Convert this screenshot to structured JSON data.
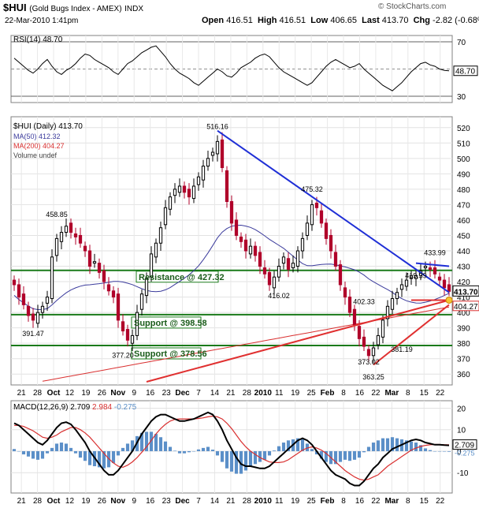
{
  "header": {
    "symbol": "$HUI",
    "name": "(Gold Bugs Index - AMEX)",
    "exchange": "INDX",
    "watermark": "© StockCharts.com",
    "date": "22-Mar-2010 1:41pm",
    "open_label": "Open",
    "open": "416.51",
    "high_label": "High",
    "high": "416.51",
    "low_label": "Low",
    "low": "406.65",
    "last_label": "Last",
    "last": "413.70",
    "chg_label": "Chg",
    "chg": "-2.82 (-0.68%)",
    "chg_arrow": "▼"
  },
  "colors": {
    "up": "#000000",
    "down": "#b0002a",
    "ma50": "#3b3b9c",
    "ma200": "#d93030",
    "trend_blue": "#1f2fd6",
    "trend_red": "#e03030",
    "support_green": "#1a7a1a",
    "volume": "#5b8fc8",
    "macd_signal": "#d93030"
  },
  "chart_data": [
    {
      "type": "line",
      "name": "RSI",
      "legend": "RSI(14) 48.70",
      "last_label": "48.70",
      "ylim": [
        30,
        70
      ],
      "y_ticks": [
        "70",
        "50",
        "30"
      ],
      "reference_lines": [
        70,
        30
      ],
      "values": [
        58,
        55,
        52,
        49,
        47,
        50,
        54,
        57,
        52,
        48,
        46,
        49,
        51,
        54,
        58,
        61,
        60,
        57,
        55,
        53,
        51,
        48,
        46,
        50,
        54,
        56,
        59,
        62,
        64,
        66,
        67,
        63,
        59,
        54,
        50,
        47,
        45,
        43,
        40,
        38,
        41,
        44,
        47,
        50,
        48,
        45,
        44,
        47,
        51,
        53,
        55,
        58,
        60,
        61,
        59,
        55,
        51,
        48,
        46,
        44,
        42,
        40,
        38,
        40,
        44,
        48,
        52,
        55,
        57,
        55,
        53,
        51,
        52,
        54,
        50,
        47,
        44,
        41,
        38,
        36,
        34,
        37,
        40,
        44,
        48,
        51,
        54,
        55,
        53,
        52,
        50,
        49,
        48.7
      ]
    },
    {
      "type": "candlestick",
      "name": "$HUI (Daily)",
      "legend_title": "$HUI (Daily) 413.70",
      "legend_ma50": "MA(50) 412.32",
      "legend_ma200": "MA(200) 404.27",
      "legend_volume": "Volume undef",
      "ylim": [
        355,
        525
      ],
      "y_ticks": [
        "520",
        "510",
        "500",
        "490",
        "480",
        "470",
        "460",
        "450",
        "440",
        "430",
        "420",
        "410",
        "400",
        "390",
        "380",
        "370",
        "360"
      ],
      "last_price_label": "413.70",
      "ma200_label": "404.27",
      "x_ticks": [
        "21",
        "28",
        "Oct",
        "12",
        "19",
        "26",
        "Nov",
        "9",
        "16",
        "23",
        "Dec",
        "7",
        "14",
        "21",
        "28",
        "2010",
        "11",
        "19",
        "25",
        "Feb",
        "8",
        "16",
        "22",
        "Mar",
        "8",
        "15",
        "22"
      ],
      "closes": [
        418,
        410,
        405,
        398,
        395,
        400,
        404,
        410,
        436,
        448,
        452,
        456,
        452,
        449,
        445,
        440,
        430,
        433,
        426,
        420,
        414,
        410,
        395,
        388,
        382,
        385,
        400,
        412,
        422,
        438,
        445,
        455,
        468,
        475,
        480,
        482,
        478,
        475,
        482,
        488,
        495,
        500,
        504,
        511,
        494,
        472,
        458,
        450,
        446,
        440,
        443,
        437,
        430,
        425,
        418,
        423,
        430,
        436,
        428,
        432,
        440,
        448,
        458,
        470,
        468,
        458,
        448,
        440,
        430,
        418,
        410,
        400,
        392,
        383,
        378,
        372,
        377,
        385,
        395,
        404,
        409,
        413,
        418,
        421,
        424,
        424,
        427,
        430,
        428,
        425,
        421,
        416,
        413.7
      ],
      "price_labels": [
        {
          "text": "458.85",
          "index": 9,
          "value": 458.85
        },
        {
          "text": "391.47",
          "index": 4,
          "value": 391.47
        },
        {
          "text": "377.20",
          "index": 23,
          "value": 377.2
        },
        {
          "text": "516.16",
          "index": 43,
          "value": 516.16
        },
        {
          "text": "416.02",
          "index": 56,
          "value": 416.02
        },
        {
          "text": "475.32",
          "index": 63,
          "value": 475.32
        },
        {
          "text": "402.33",
          "index": 74,
          "value": 402.33
        },
        {
          "text": "373.02",
          "index": 75,
          "value": 373.02
        },
        {
          "text": "363.25",
          "index": 76,
          "value": 363.25
        },
        {
          "text": "381.19",
          "index": 82,
          "value": 381.19
        },
        {
          "text": "419.39",
          "index": 85,
          "value": 419.39
        },
        {
          "text": "433.99",
          "index": 89,
          "value": 433.99
        }
      ],
      "horizontal_levels": [
        {
          "label": "Resistance @ 427.32",
          "value": 427.32
        },
        {
          "label": "Support @ 398.58",
          "value": 398.58
        },
        {
          "label": "Support @ 378.56",
          "value": 378.56
        }
      ],
      "trendlines": [
        {
          "color": "blue",
          "from": {
            "index": 43,
            "value": 518
          },
          "to": {
            "index": 92,
            "value": 413
          }
        },
        {
          "color": "blue",
          "from": {
            "index": 85,
            "value": 432
          },
          "to": {
            "index": 92,
            "value": 430
          }
        },
        {
          "color": "red",
          "from": {
            "index": 28,
            "value": 355
          },
          "to": {
            "index": 92,
            "value": 408
          }
        },
        {
          "color": "red",
          "from": {
            "index": 76,
            "value": 366
          },
          "to": {
            "index": 92,
            "value": 405
          }
        },
        {
          "color": "red",
          "from": {
            "index": 84,
            "value": 408
          },
          "to": {
            "index": 92,
            "value": 408
          }
        }
      ]
    },
    {
      "type": "line",
      "name": "MACD",
      "legend_label": "MACD(12,26,9)",
      "legend_macd": "2.709",
      "legend_signal": "2.984",
      "legend_hist": "-0.275",
      "label_macd": "2.709",
      "label_hist": "-0.275",
      "ylim": [
        -18,
        22
      ],
      "y_ticks": [
        "20",
        "10",
        "0",
        "-10"
      ],
      "macd": [
        13,
        12,
        10,
        8,
        6,
        4,
        3,
        5,
        8,
        11,
        13,
        13.5,
        12.5,
        10,
        7,
        4,
        0,
        -3,
        -6,
        -9,
        -11,
        -11,
        -9,
        -6,
        -3,
        0,
        4,
        8,
        11,
        14,
        16,
        17,
        17,
        16,
        15,
        14,
        14,
        14.5,
        15,
        16,
        17,
        18,
        17,
        14,
        10,
        5,
        1,
        -3,
        -6,
        -7,
        -7,
        -7.5,
        -8,
        -8,
        -7,
        -5,
        -3,
        -1,
        1,
        3,
        5,
        6,
        5,
        3,
        0,
        -3,
        -6,
        -9,
        -11,
        -12,
        -13,
        -15,
        -16,
        -16,
        -14,
        -11,
        -8,
        -6,
        -3,
        -1,
        1,
        2,
        3,
        4,
        5,
        5.5,
        5,
        4,
        3.5,
        3,
        3,
        2.8,
        2.709
      ],
      "signal": [
        12,
        12,
        11.5,
        10.5,
        9.5,
        8,
        6.5,
        6,
        6.5,
        7.5,
        9,
        10,
        11,
        11,
        10,
        8.5,
        6.5,
        4,
        1.5,
        -1,
        -3.5,
        -5.5,
        -7,
        -7.5,
        -6.5,
        -5,
        -3,
        -0.5,
        2,
        5,
        8,
        10.5,
        12.5,
        14,
        14.8,
        15,
        15,
        15,
        15,
        15.2,
        15.5,
        16,
        16.3,
        16,
        15,
        13,
        10.5,
        7.5,
        4.5,
        2,
        0,
        -1.5,
        -3,
        -4,
        -5,
        -5.3,
        -5.3,
        -5,
        -4,
        -2.5,
        -1,
        0.5,
        1.5,
        2,
        1.5,
        0.5,
        -1,
        -3,
        -5,
        -7,
        -9,
        -10.5,
        -12,
        -13,
        -13.5,
        -13,
        -12,
        -11,
        -9,
        -7,
        -5.5,
        -4,
        -2.5,
        -1,
        0.5,
        1.5,
        2.2,
        2.7,
        3,
        3.1,
        3.1,
        3,
        2.984
      ]
    }
  ]
}
